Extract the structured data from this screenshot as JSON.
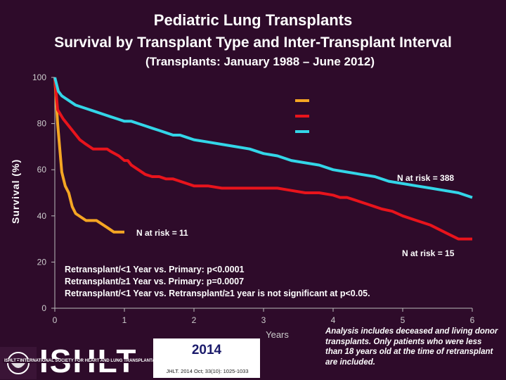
{
  "header": {
    "title": "Pediatric Lung Transplants",
    "subtitle": "Survival by Transplant Type and Inter-Transplant Interval",
    "period": "(Transplants: January 1988 – June 2012)"
  },
  "colors": {
    "background": "#2e0b2a",
    "retx_lt1": "#f5a623",
    "retx_ge1": "#e8141c",
    "primary": "#33d6e8",
    "text": "#ffffff"
  },
  "chart_data": {
    "type": "line",
    "xlabel": "Years",
    "ylabel": "Survival (%)",
    "xlim": [
      0,
      6
    ],
    "ylim": [
      0,
      100
    ],
    "xticks": [
      "0",
      "1",
      "2",
      "3",
      "4",
      "5",
      "6"
    ],
    "yticks": [
      "0",
      "20",
      "40",
      "60",
      "80",
      "100"
    ],
    "legend": "top-right",
    "series": [
      {
        "color": "#f5a623",
        "x": [
          0,
          0.04,
          0.1,
          0.15,
          0.2,
          0.25,
          0.3,
          0.45,
          0.6,
          0.75,
          0.85,
          0.9,
          1.0
        ],
        "y": [
          100,
          80,
          59,
          53,
          50,
          44,
          41,
          38,
          38,
          35,
          33,
          33,
          33
        ]
      },
      {
        "color": "#e8141c",
        "x": [
          0,
          0.04,
          0.12,
          0.2,
          0.28,
          0.36,
          0.45,
          0.55,
          0.65,
          0.75,
          0.8,
          0.92,
          1.0,
          1.05,
          1.1,
          1.2,
          1.3,
          1.4,
          1.5,
          1.6,
          1.7,
          1.9,
          2.0,
          2.2,
          2.4,
          2.6,
          2.8,
          3.0,
          3.2,
          3.4,
          3.6,
          3.8,
          4.0,
          4.1,
          4.2,
          4.3,
          4.4,
          4.5,
          4.6,
          4.7,
          4.85,
          5.0,
          5.2,
          5.3,
          5.4,
          5.6,
          5.8,
          6.0
        ],
        "y": [
          100,
          86,
          82,
          79,
          76,
          73,
          71,
          69,
          69,
          69,
          68,
          66,
          64,
          64,
          62,
          60,
          58,
          57,
          57,
          56,
          56,
          54,
          53,
          53,
          52,
          52,
          52,
          52,
          52,
          51,
          50,
          50,
          49,
          48,
          48,
          47,
          46,
          45,
          44,
          43,
          42,
          40,
          38,
          37,
          36,
          33,
          30,
          30
        ]
      },
      {
        "color": "#33d6e8",
        "x": [
          0,
          0.05,
          0.1,
          0.15,
          0.2,
          0.3,
          0.4,
          0.5,
          0.6,
          0.7,
          0.8,
          0.9,
          1.0,
          1.1,
          1.2,
          1.3,
          1.4,
          1.5,
          1.6,
          1.7,
          1.8,
          1.9,
          2.0,
          2.2,
          2.4,
          2.6,
          2.8,
          3.0,
          3.2,
          3.4,
          3.6,
          3.8,
          4.0,
          4.2,
          4.4,
          4.6,
          4.8,
          5.0,
          5.2,
          5.4,
          5.6,
          5.8,
          6.0
        ],
        "y": [
          100,
          94,
          92,
          91,
          90,
          88,
          87,
          86,
          85,
          84,
          83,
          82,
          81,
          81,
          80,
          79,
          78,
          77,
          76,
          75,
          75,
          74,
          73,
          72,
          71,
          70,
          69,
          67,
          66,
          64,
          63,
          62,
          60,
          59,
          58,
          57,
          55,
          54,
          53,
          52,
          51,
          50,
          48
        ]
      }
    ],
    "annotations": [
      "N at risk = 388",
      "N at risk = 11",
      "N at risk = 15"
    ]
  },
  "tests": [
    "Retransplant/<1 Year vs. Primary: p<0.0001",
    "Retransplant/≥1 Year vs. Primary: p=0.0007",
    "Retransplant/<1 Year vs. Retransplant/≥1 year is not significant at p<0.05."
  ],
  "analysis_note": "Analysis includes deceased and living donor transplants. Only patients who were less than 18 years old at the time of retransplant are included.",
  "logo": {
    "text": "ISHLT",
    "subtext": "ISHLT • INTERNATIONAL SOCIETY FOR HEART AND LUNG TRANSPLANTATION"
  },
  "citation": {
    "year": "2014",
    "ref": "JHLT. 2014 Oct; 33(10): 1025-1033"
  }
}
